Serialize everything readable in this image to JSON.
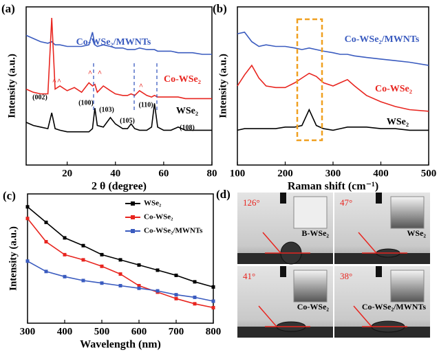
{
  "chart_data": [
    {
      "type": "line",
      "panel_label": "(a)",
      "xlabel": "2 θ (degree)",
      "ylabel": "Intensity (a.u.)",
      "x": [
        3,
        6,
        9,
        12,
        13.6,
        15,
        17,
        20,
        23,
        26,
        29,
        30.5,
        31.5,
        32.5,
        35,
        37.9,
        40,
        43,
        45,
        46.5,
        48,
        50,
        53,
        55,
        56.2,
        57.5,
        60,
        63,
        66,
        69,
        72,
        76,
        80
      ],
      "xlim": [
        3,
        80
      ],
      "xticks": [
        20,
        40,
        60,
        80
      ],
      "ylim": [
        0,
        100
      ],
      "series": [
        {
          "name": "Co-WSe₂/MWNTs",
          "color": "#3a5bbf",
          "values": [
            82,
            80,
            78,
            77,
            78,
            76,
            76,
            75,
            75,
            75,
            76,
            84,
            76,
            75,
            76,
            75,
            74,
            74,
            73,
            73,
            73,
            74,
            73,
            73,
            73,
            72,
            72,
            72,
            71,
            71,
            71,
            70,
            70
          ]
        },
        {
          "name": "Co-WSe₂",
          "color": "#e8251f",
          "values": [
            48,
            46,
            45,
            45,
            93,
            48,
            50,
            47,
            49,
            46,
            52,
            50,
            51,
            46,
            50,
            47,
            45,
            44,
            44,
            45,
            44,
            47,
            44,
            43,
            44,
            43,
            43,
            43,
            43,
            42,
            42,
            42,
            42
          ]
        },
        {
          "name": "WSe₂",
          "color": "#000000",
          "values": [
            27,
            25,
            24,
            23,
            33,
            23,
            22,
            21,
            21,
            21,
            21,
            23,
            36,
            25,
            24,
            30,
            26,
            23,
            23,
            26,
            23,
            22,
            22,
            24,
            39,
            24,
            22,
            22,
            24,
            22,
            22,
            22,
            22
          ]
        }
      ],
      "annotations": [
        "(002)",
        "(100)",
        "(103)",
        "(105)",
        "(110)",
        "(108)"
      ],
      "marker_symbol": "^"
    },
    {
      "type": "line",
      "panel_label": "(b)",
      "xlabel": "Raman shift (cm⁻¹)",
      "ylabel": "Intensity (a.u.)",
      "x": [
        100,
        115,
        130,
        145,
        160,
        180,
        200,
        220,
        235,
        250,
        265,
        280,
        300,
        315,
        330,
        345,
        370,
        400,
        430,
        460,
        500
      ],
      "xlim": [
        100,
        500
      ],
      "xticks": [
        100,
        200,
        300,
        400,
        500
      ],
      "ylim": [
        0,
        100
      ],
      "series": [
        {
          "name": "Co-WSe₂/MWNTs",
          "color": "#3a5bbf",
          "values": [
            83,
            84,
            78,
            75,
            76,
            75,
            75,
            74,
            73,
            74,
            73,
            72,
            71,
            70,
            70,
            69,
            68,
            67,
            66,
            65,
            63
          ]
        },
        {
          "name": "Co-WSe₂",
          "color": "#e8251f",
          "values": [
            50,
            57,
            63,
            55,
            50,
            49,
            49,
            52,
            55,
            58,
            56,
            52,
            50,
            52,
            54,
            50,
            44,
            40,
            37,
            35,
            34
          ]
        },
        {
          "name": "WSe₂",
          "color": "#000000",
          "values": [
            22,
            23,
            23,
            23,
            23,
            23,
            24,
            24,
            25,
            35,
            25,
            23,
            22,
            23,
            24,
            24,
            24,
            23,
            23,
            22,
            22
          ]
        }
      ]
    },
    {
      "type": "line",
      "panel_label": "(c)",
      "xlabel": "Wavelength (nm)",
      "ylabel": "Intensity (a.u.)",
      "x": [
        300,
        350,
        400,
        450,
        500,
        550,
        600,
        650,
        700,
        750,
        800
      ],
      "xlim": [
        300,
        800
      ],
      "xticks": [
        300,
        400,
        500,
        600,
        700,
        800
      ],
      "ylim": [
        0,
        100
      ],
      "markers": true,
      "legend": "upper right",
      "series": [
        {
          "name": "WSe₂",
          "color": "#000000",
          "values": [
            90,
            78,
            66,
            60,
            53,
            49,
            45,
            41,
            37,
            32,
            28
          ]
        },
        {
          "name": "Co-WSe₂",
          "color": "#e8251f",
          "values": [
            81,
            63,
            53,
            49,
            44,
            38,
            29,
            24,
            19,
            15,
            12
          ]
        },
        {
          "name": "Co-WSe₂/MWNTs",
          "color": "#3a5bbf",
          "values": [
            48,
            40,
            36,
            33,
            31,
            29,
            27,
            25,
            22,
            20,
            17
          ]
        }
      ]
    }
  ],
  "photo_panel": {
    "panel_label": "(d)",
    "photos": [
      {
        "angle": "126°",
        "label": "B-WSe₂"
      },
      {
        "angle": "47°",
        "label": "WSe₂"
      },
      {
        "angle": "41°",
        "label": "Co-WSe₂"
      },
      {
        "angle": "38°",
        "label": "Co-WSe₂/MWNTs"
      }
    ]
  }
}
